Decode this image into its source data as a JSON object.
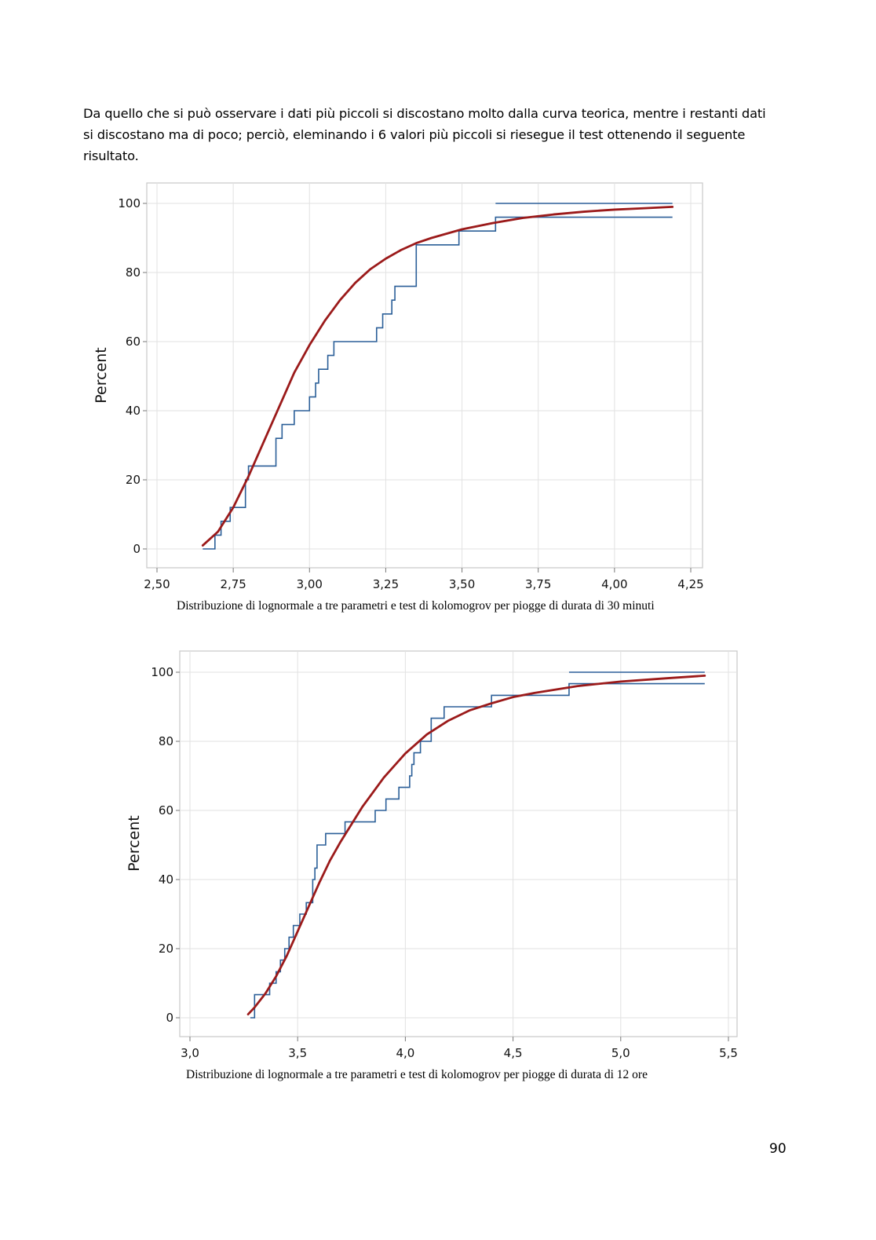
{
  "paragraph": {
    "lines": [
      "Da quello che si può osservare i dati più piccoli si discostano molto dalla curva teorica, mentre i restanti dati",
      "si discostano ma di poco; perciò, eleminando i 6 valori più piccoli si riesegue il test ottenendo il seguente",
      "risultato."
    ]
  },
  "chart_data": [
    {
      "type": "line",
      "title": "",
      "xlabel": "",
      "ylabel": "Percent",
      "xlim": [
        2.5,
        4.25
      ],
      "ylim": [
        0,
        100
      ],
      "x_ticks": [
        2.5,
        2.75,
        3.0,
        3.25,
        3.5,
        3.75,
        4.0,
        4.25
      ],
      "x_tick_labels": [
        "2,50",
        "2,75",
        "3,00",
        "3,25",
        "3,50",
        "3,75",
        "4,00",
        "4,25"
      ],
      "y_ticks": [
        0,
        20,
        40,
        60,
        80,
        100
      ],
      "y_tick_labels": [
        "0",
        "20",
        "40",
        "60",
        "80",
        "100"
      ],
      "grid": true,
      "caption": "Distribuzione di lognormale a tre parametri e test di kolomogrov per piogge di durata di 30 minuti",
      "series": [
        {
          "kind": "empirical-step",
          "color": "#2b5f98",
          "x": [
            2.65,
            2.69,
            2.71,
            2.74,
            2.79,
            2.8,
            2.89,
            2.91,
            2.95,
            3.0,
            3.02,
            3.03,
            3.06,
            3.08,
            3.22,
            3.24,
            3.27,
            3.28,
            3.35,
            3.49,
            3.61
          ],
          "y": [
            0,
            4,
            8,
            12,
            20,
            24,
            32,
            36,
            40,
            44,
            48,
            52,
            56,
            60,
            64,
            68,
            72,
            76,
            88,
            92,
            96
          ],
          "x_end": 4.19,
          "y_end": 100
        },
        {
          "kind": "fitted-cdf",
          "color": "#9b1a1a",
          "x": [
            2.65,
            2.7,
            2.75,
            2.8,
            2.85,
            2.9,
            2.95,
            3.0,
            3.05,
            3.1,
            3.15,
            3.2,
            3.25,
            3.3,
            3.35,
            3.4,
            3.5,
            3.6,
            3.7,
            3.8,
            3.9,
            4.0,
            4.1,
            4.19
          ],
          "y": [
            1,
            5,
            12,
            21,
            31,
            41,
            51,
            59,
            66,
            72,
            77,
            81,
            84,
            86.5,
            88.5,
            90,
            92.5,
            94.3,
            95.8,
            96.8,
            97.6,
            98.2,
            98.6,
            99
          ]
        }
      ]
    },
    {
      "type": "line",
      "title": "",
      "xlabel": "",
      "ylabel": "Percent",
      "xlim": [
        3.0,
        5.5
      ],
      "ylim": [
        0,
        100
      ],
      "x_ticks": [
        3.0,
        3.5,
        4.0,
        4.5,
        5.0,
        5.5
      ],
      "x_tick_labels": [
        "3,0",
        "3,5",
        "4,0",
        "4,5",
        "5,0",
        "5,5"
      ],
      "y_ticks": [
        0,
        20,
        40,
        60,
        80,
        100
      ],
      "y_tick_labels": [
        "0",
        "20",
        "40",
        "60",
        "80",
        "100"
      ],
      "grid": true,
      "caption": "Distribuzione di lognormale a tre parametri e test di kolomogrov per piogge di durata di 12 ore",
      "series": [
        {
          "kind": "empirical-step",
          "color": "#2b5f98",
          "x": [
            3.28,
            3.3,
            3.37,
            3.4,
            3.42,
            3.44,
            3.46,
            3.48,
            3.51,
            3.54,
            3.57,
            3.58,
            3.59,
            3.63,
            3.72,
            3.86,
            3.91,
            3.97,
            4.02,
            4.03,
            4.04,
            4.07,
            4.12,
            4.18,
            4.4,
            4.76
          ],
          "y": [
            0,
            6.7,
            10,
            13.3,
            16.7,
            20,
            23.3,
            26.7,
            30,
            33.3,
            40,
            43.3,
            50,
            53.3,
            56.7,
            60,
            63.3,
            66.7,
            70,
            73.3,
            76.7,
            80,
            86.7,
            90,
            93.3,
            96.7
          ],
          "x_end": 5.39,
          "y_end": 100
        },
        {
          "kind": "fitted-cdf",
          "color": "#9b1a1a",
          "x": [
            3.27,
            3.3,
            3.35,
            3.4,
            3.45,
            3.5,
            3.55,
            3.6,
            3.65,
            3.7,
            3.8,
            3.9,
            4.0,
            4.1,
            4.2,
            4.3,
            4.4,
            4.5,
            4.6,
            4.8,
            5.0,
            5.2,
            5.39
          ],
          "y": [
            1,
            3,
            7,
            12,
            18,
            25,
            32,
            39,
            45.5,
            51,
            61,
            69.5,
            76.5,
            82,
            86,
            89,
            91,
            92.8,
            94,
            96,
            97.3,
            98.2,
            99
          ]
        }
      ]
    }
  ],
  "page_number": "90"
}
